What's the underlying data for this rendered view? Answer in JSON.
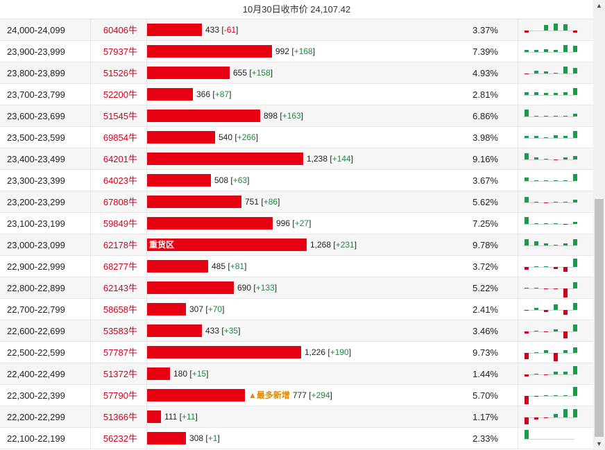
{
  "header": {
    "title": "10月30日收市价 24,107.42"
  },
  "scroll": {
    "up": "▲",
    "down": "▼"
  },
  "rows": [
    {
      "range": "24,000-24,099",
      "oi": "60406牛",
      "vol": "433",
      "chg": "-61",
      "pct": "3.37%",
      "bar": 433,
      "spark": [
        -2,
        0,
        6,
        8,
        7,
        -2
      ]
    },
    {
      "range": "23,900-23,999",
      "oi": "57937牛",
      "vol": "992",
      "chg": "+168",
      "pct": "7.39%",
      "bar": 992,
      "spark": [
        2,
        2,
        3,
        2,
        8,
        7
      ]
    },
    {
      "range": "23,800-23,899",
      "oi": "51526牛",
      "vol": "655",
      "chg": "+158",
      "pct": "4.93%",
      "bar": 655,
      "spark": [
        -1,
        3,
        2,
        1,
        8,
        6
      ]
    },
    {
      "range": "23,700-23,799",
      "oi": "52200牛",
      "vol": "366",
      "chg": "+87",
      "pct": "2.81%",
      "bar": 366,
      "spark": [
        3,
        3,
        2,
        2,
        3,
        8
      ]
    },
    {
      "range": "23,600-23,699",
      "oi": "51545牛",
      "vol": "898",
      "chg": "+163",
      "pct": "6.86%",
      "bar": 898,
      "spark": [
        8,
        1,
        1,
        1,
        1,
        3
      ]
    },
    {
      "range": "23,500-23,599",
      "oi": "69854牛",
      "vol": "540",
      "chg": "+266",
      "pct": "3.98%",
      "bar": 540,
      "spark": [
        2,
        2,
        1,
        3,
        2,
        8
      ]
    },
    {
      "range": "23,400-23,499",
      "oi": "64201牛",
      "vol": "1,238",
      "chg": "+144",
      "pct": "9.16%",
      "bar": 1238,
      "spark": [
        7,
        2,
        1,
        -1,
        2,
        4
      ]
    },
    {
      "range": "23,300-23,399",
      "oi": "64023牛",
      "vol": "508",
      "chg": "+63",
      "pct": "3.67%",
      "bar": 508,
      "spark": [
        4,
        1,
        1,
        1,
        1,
        8
      ]
    },
    {
      "range": "23,200-23,299",
      "oi": "67808牛",
      "vol": "751",
      "chg": "+86",
      "pct": "5.62%",
      "bar": 751,
      "spark": [
        6,
        1,
        -1,
        1,
        1,
        3
      ]
    },
    {
      "range": "23,100-23,199",
      "oi": "59849牛",
      "vol": "996",
      "chg": "+27",
      "pct": "7.25%",
      "bar": 996,
      "spark": [
        8,
        1,
        1,
        1,
        -1,
        2
      ]
    },
    {
      "range": "23,000-23,099",
      "oi": "62178牛",
      "vol": "1,268",
      "chg": "+231",
      "pct": "9.78%",
      "bar": 1268,
      "tag_inside": "重货区",
      "spark": [
        7,
        5,
        2,
        1,
        2,
        7
      ]
    },
    {
      "range": "22,900-22,999",
      "oi": "68277牛",
      "vol": "485",
      "chg": "+81",
      "pct": "3.72%",
      "bar": 485,
      "spark": [
        -3,
        1,
        1,
        -2,
        -5,
        9
      ]
    },
    {
      "range": "22,800-22,899",
      "oi": "62143牛",
      "vol": "690",
      "chg": "+133",
      "pct": "5.22%",
      "bar": 690,
      "spark": [
        1,
        1,
        -1,
        -1,
        -10,
        7
      ]
    },
    {
      "range": "22,700-22,799",
      "oi": "58658牛",
      "vol": "307",
      "chg": "+70",
      "pct": "2.41%",
      "bar": 307,
      "spark": [
        -1,
        2,
        -2,
        6,
        -5,
        8
      ]
    },
    {
      "range": "22,600-22,699",
      "oi": "53583牛",
      "vol": "433",
      "chg": "+35",
      "pct": "3.46%",
      "bar": 433,
      "spark": [
        -2,
        1,
        -1,
        2,
        -8,
        8
      ]
    },
    {
      "range": "22,500-22,599",
      "oi": "57787牛",
      "vol": "1,226",
      "chg": "+190",
      "pct": "9.73%",
      "bar": 1226,
      "spark": [
        -7,
        1,
        3,
        -9,
        3,
        6
      ]
    },
    {
      "range": "22,400-22,499",
      "oi": "51372牛",
      "vol": "180",
      "chg": "+15",
      "pct": "1.44%",
      "bar": 180,
      "spark": [
        -2,
        1,
        -1,
        3,
        3,
        9
      ]
    },
    {
      "range": "22,300-22,399",
      "oi": "57790牛",
      "vol": "777",
      "chg": "+294",
      "pct": "5.70%",
      "bar": 777,
      "tag_after": "▲最多新增",
      "spark": [
        -9,
        -1,
        1,
        1,
        1,
        10
      ]
    },
    {
      "range": "22,200-22,299",
      "oi": "51366牛",
      "vol": "111",
      "chg": "+11",
      "pct": "1.17%",
      "bar": 111,
      "spark": [
        -8,
        -2,
        -1,
        4,
        9,
        9
      ]
    },
    {
      "range": "22,100-22,199",
      "oi": "56232牛",
      "vol": "308",
      "chg": "+1",
      "pct": "2.33%",
      "bar": 308,
      "spark": [
        10,
        0,
        0,
        0,
        0,
        0
      ]
    }
  ]
}
